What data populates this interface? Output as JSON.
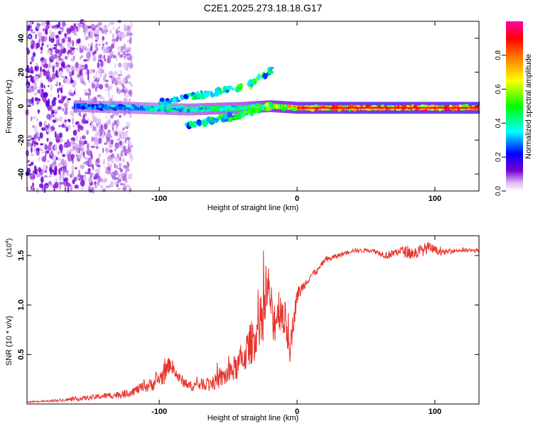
{
  "figure": {
    "title": "C2E1.2025.273.18.18.G17"
  },
  "chart_data": [
    {
      "type": "heatmap",
      "name": "spectrogram",
      "xlabel": "Height of straight line (km)",
      "ylabel": "Frequency (Hz)",
      "xlim": [
        -196,
        132
      ],
      "ylim": [
        -50,
        50
      ],
      "xticks": [
        -100,
        0,
        100
      ],
      "xtick_labels": [
        "-100",
        "0",
        "100"
      ],
      "yticks": [
        -40,
        -20,
        0,
        20,
        40
      ],
      "ytick_labels": [
        "-40",
        "-20",
        "0",
        "20",
        "40"
      ],
      "colorbar": {
        "label": "Normalized spectral amplitude",
        "range": [
          0,
          1
        ],
        "ticks": [
          0.0,
          0.2,
          0.4,
          0.6,
          0.8
        ],
        "tick_labels": [
          "0.0",
          "0.2",
          "0.4",
          "0.6",
          "0.8"
        ],
        "colormap": [
          "#ffffff",
          "#7b00d4",
          "#0000ff",
          "#00ffff",
          "#00ff00",
          "#ffff00",
          "#ff8000",
          "#ff0000",
          "#ff00aa"
        ]
      },
      "features": [
        {
          "kind": "noise",
          "x_range": [
            -196,
            -120
          ],
          "freq_range": [
            -50,
            50
          ],
          "amplitude": 0.15
        },
        {
          "kind": "band",
          "x": [
            -162,
            -120,
            -80,
            -40,
            -20,
            0,
            20,
            60,
            100,
            132
          ],
          "freq": [
            0,
            -1,
            -2,
            -1,
            0,
            -1,
            -1,
            -1,
            -1,
            -1
          ],
          "amplitude": [
            0.3,
            0.35,
            0.45,
            0.5,
            0.6,
            0.8,
            0.85,
            0.9,
            0.85,
            0.9
          ]
        },
        {
          "kind": "branch",
          "x": [
            -80,
            -60,
            -40,
            -20
          ],
          "freq": [
            -12,
            -8,
            -5,
            0
          ],
          "amplitude": [
            0.35,
            0.4,
            0.45,
            0.5
          ]
        },
        {
          "kind": "branch",
          "x": [
            -100,
            -60,
            -35,
            -18
          ],
          "freq": [
            2,
            8,
            12,
            22
          ],
          "amplitude": [
            0.3,
            0.4,
            0.5,
            0.35
          ]
        }
      ]
    },
    {
      "type": "line",
      "name": "snr",
      "xlabel": "Height of straight line (km)",
      "ylabel": "SNR (10 * v/v)",
      "y_multiplier": "(x10",
      "y_multiplier_exp": "4",
      "y_multiplier_close": ")",
      "xlim": [
        -196,
        132
      ],
      "ylim": [
        0,
        1.7
      ],
      "xticks": [
        -100,
        0,
        100
      ],
      "xtick_labels": [
        "-100",
        "0",
        "100"
      ],
      "yticks": [
        0.5,
        1.0,
        1.5
      ],
      "ytick_labels": [
        "0.5",
        "1.0",
        "1.5"
      ],
      "color": "#e8322c",
      "series": [
        {
          "name": "SNR",
          "x": [
            -196,
            -180,
            -160,
            -140,
            -125,
            -115,
            -105,
            -96,
            -92,
            -90,
            -85,
            -78,
            -70,
            -60,
            -50,
            -42,
            -36,
            -30,
            -25,
            -20,
            -18,
            -15,
            -12,
            -8,
            -5,
            -3,
            0,
            5,
            10,
            15,
            20,
            30,
            40,
            55,
            65,
            75,
            85,
            95,
            105,
            115,
            125,
            132
          ],
          "y": [
            0.02,
            0.03,
            0.05,
            0.08,
            0.1,
            0.15,
            0.2,
            0.3,
            0.42,
            0.35,
            0.25,
            0.18,
            0.2,
            0.22,
            0.3,
            0.4,
            0.55,
            0.7,
            0.85,
            1.2,
            0.8,
            0.9,
            1.0,
            0.8,
            0.6,
            0.8,
            1.1,
            1.2,
            1.3,
            1.35,
            1.45,
            1.5,
            1.55,
            1.55,
            1.5,
            1.55,
            1.52,
            1.58,
            1.53,
            1.55,
            1.55,
            1.55
          ],
          "noise": [
            0.005,
            0.01,
            0.02,
            0.03,
            0.04,
            0.05,
            0.07,
            0.1,
            0.08,
            0.08,
            0.06,
            0.05,
            0.06,
            0.08,
            0.12,
            0.15,
            0.2,
            0.25,
            0.3,
            0.25,
            0.25,
            0.25,
            0.25,
            0.2,
            0.2,
            0.12,
            0.08,
            0.05,
            0.04,
            0.03,
            0.03,
            0.025,
            0.02,
            0.02,
            0.04,
            0.05,
            0.07,
            0.06,
            0.03,
            0.02,
            0.02,
            0.02
          ]
        }
      ]
    }
  ]
}
